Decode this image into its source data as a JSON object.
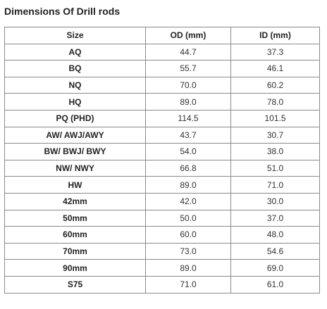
{
  "title": "Dimensions Of Drill rods",
  "table": {
    "headers": [
      "Size",
      "OD (mm)",
      "ID (mm)"
    ],
    "rows": [
      {
        "size": "AQ",
        "od": "44.7",
        "id": "37.3"
      },
      {
        "size": "BQ",
        "od": "55.7",
        "id": "46.1"
      },
      {
        "size": "NQ",
        "od": "70.0",
        "id": "60.2"
      },
      {
        "size": "HQ",
        "od": "89.0",
        "id": "78.0"
      },
      {
        "size": "PQ (PHD)",
        "od": "114.5",
        "id": "101.5"
      },
      {
        "size": "AW/ AWJ/AWY",
        "od": "43.7",
        "id": "30.7"
      },
      {
        "size": "BW/ BWJ/ BWY",
        "od": "54.0",
        "id": "38.0"
      },
      {
        "size": "NW/ NWY",
        "od": "66.8",
        "id": "51.0"
      },
      {
        "size": "HW",
        "od": "89.0",
        "id": "71.0"
      },
      {
        "size": "42mm",
        "od": "42.0",
        "id": "30.0"
      },
      {
        "size": "50mm",
        "od": "50.0",
        "id": "37.0"
      },
      {
        "size": "60mm",
        "od": "60.0",
        "id": "48.0"
      },
      {
        "size": "70mm",
        "od": "73.0",
        "id": "54.6"
      },
      {
        "size": "90mm",
        "od": "89.0",
        "id": "69.0"
      },
      {
        "size": "S75",
        "od": "71.0",
        "id": "61.0"
      }
    ]
  }
}
